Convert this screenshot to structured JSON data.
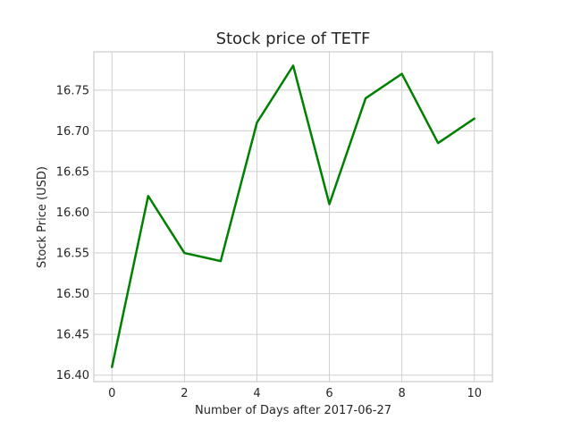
{
  "chart_data": {
    "type": "line",
    "title": "Stock price of TETF",
    "xlabel": "Number of Days after 2017-06-27",
    "ylabel": "Stock Price (USD)",
    "x": [
      0,
      1,
      2,
      3,
      4,
      5,
      6,
      7,
      8,
      9,
      10
    ],
    "series": [
      {
        "values": [
          16.41,
          16.62,
          16.55,
          16.54,
          16.71,
          16.78,
          16.61,
          16.74,
          16.77,
          16.685,
          16.715
        ],
        "color": "#008000"
      }
    ],
    "xlim": [
      -0.5,
      10.5
    ],
    "ylim": [
      16.392,
      16.797
    ],
    "x_ticks": [
      0,
      2,
      4,
      6,
      8,
      10
    ],
    "y_ticks": [
      16.4,
      16.45,
      16.5,
      16.55,
      16.6,
      16.65,
      16.7,
      16.75
    ],
    "x_tick_labels": [
      "0",
      "2",
      "4",
      "6",
      "8",
      "10"
    ],
    "y_tick_labels": [
      "16.40",
      "16.45",
      "16.50",
      "16.55",
      "16.60",
      "16.65",
      "16.70",
      "16.75"
    ],
    "grid": true,
    "legend": false
  }
}
